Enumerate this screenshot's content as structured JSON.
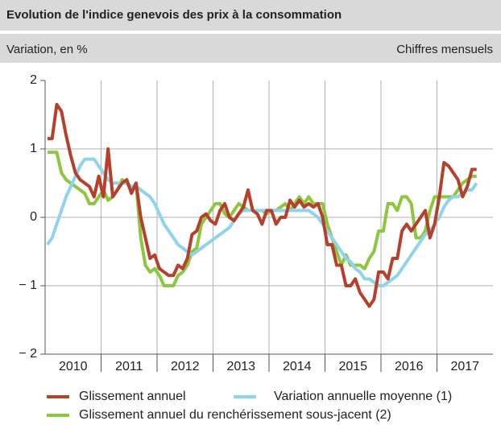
{
  "chart_data": {
    "type": "line",
    "title": "Evolution de l'indice genevois des prix à la consommation",
    "subtitle": "Variation, en %",
    "note": "Chiffres mensuels",
    "categories": [
      "2010",
      "2011",
      "2012",
      "2013",
      "2014",
      "2015",
      "2016",
      "2017"
    ],
    "ylim": [
      -2,
      2
    ],
    "yticks": [
      {
        "value": -2,
        "label": "− 2"
      },
      {
        "value": -1,
        "label": "− 1"
      },
      0,
      1,
      2
    ],
    "grid": true,
    "series": [
      {
        "name": "Glissement annuel",
        "color": "#b5412c",
        "values": [
          [
            1.15,
            1.15,
            1.65,
            1.55,
            1.2,
            0.9,
            0.65,
            0.55,
            0.5,
            0.45,
            0.3,
            0.6
          ],
          [
            0.3,
            1.0,
            0.3,
            0.4,
            0.5,
            0.55,
            0.35,
            0.5,
            0.0,
            -0.3,
            -0.6,
            -0.55
          ],
          [
            -0.75,
            -0.8,
            -0.85,
            -0.85,
            -0.7,
            -0.75,
            -0.6,
            -0.25,
            -0.2,
            0.0,
            0.05,
            -0.05
          ],
          [
            -0.1,
            0.1,
            0.2,
            0.0,
            -0.05,
            0.05,
            0.15,
            0.4,
            0.1,
            0.05,
            -0.1,
            0.1
          ],
          [
            0.1,
            -0.1,
            0.0,
            0.0,
            0.25,
            0.15,
            0.25,
            0.15,
            0.2,
            0.15,
            0.2,
            0.0
          ],
          [
            -0.4,
            -0.4,
            -0.7,
            -0.7,
            -1.0,
            -1.0,
            -0.9,
            -1.1,
            -1.2,
            -1.3,
            -1.2,
            -0.8
          ],
          [
            -0.8,
            -0.9,
            -0.6,
            -0.6,
            -0.2,
            -0.1,
            -0.2,
            -0.1,
            0.0,
            0.1,
            -0.3,
            -0.1
          ],
          [
            0.3,
            0.8,
            0.75,
            0.65,
            0.55,
            0.3,
            0.45,
            0.7,
            0.7
          ]
        ]
      },
      {
        "name": "Variation annuelle moyenne (1)",
        "color": "#8fd3ec",
        "values": [
          [
            -0.4,
            -0.3,
            -0.1,
            0.1,
            0.3,
            0.45,
            0.6,
            0.75,
            0.85,
            0.85,
            0.85,
            0.75
          ],
          [
            0.65,
            0.55,
            0.5,
            0.5,
            0.5,
            0.5,
            0.45,
            0.45,
            0.4,
            0.35,
            0.3,
            0.2
          ],
          [
            0.05,
            -0.1,
            -0.2,
            -0.3,
            -0.4,
            -0.45,
            -0.5,
            -0.55,
            -0.5,
            -0.45,
            -0.4,
            -0.35
          ],
          [
            -0.3,
            -0.25,
            -0.2,
            -0.15,
            -0.05,
            0.05,
            0.1,
            0.1,
            0.1,
            0.1,
            0.1,
            0.1
          ],
          [
            0.1,
            0.1,
            0.1,
            0.1,
            0.1,
            0.1,
            0.1,
            0.1,
            0.1,
            0.05,
            0.0,
            -0.1
          ],
          [
            -0.2,
            -0.3,
            -0.4,
            -0.5,
            -0.6,
            -0.65,
            -0.75,
            -0.8,
            -0.9,
            -0.9,
            -0.95,
            -1.0
          ],
          [
            -1.0,
            -0.95,
            -0.9,
            -0.85,
            -0.75,
            -0.65,
            -0.55,
            -0.45,
            -0.35,
            -0.25,
            -0.2,
            -0.1
          ],
          [
            0.0,
            0.15,
            0.25,
            0.3,
            0.3,
            0.35,
            0.4,
            0.4,
            0.5
          ]
        ]
      },
      {
        "name": "Glissement annuel du renchérissement sous-jacent (2)",
        "color": "#8dc63f",
        "values": [
          [
            0.95,
            0.95,
            0.95,
            0.65,
            0.55,
            0.5,
            0.45,
            0.4,
            0.35,
            0.2,
            0.2,
            0.3
          ],
          [
            0.4,
            0.25,
            0.3,
            0.4,
            0.55,
            0.5,
            0.4,
            0.5,
            -0.3,
            -0.7,
            -0.8,
            -0.75
          ],
          [
            -0.85,
            -1.0,
            -1.0,
            -1.0,
            -0.85,
            -0.8,
            -0.7,
            -0.5,
            -0.45,
            -0.1,
            0.0,
            0.1
          ],
          [
            0.2,
            0.2,
            0.05,
            0.0,
            0.1,
            0.2,
            0.15,
            0.1,
            0.1,
            0.1,
            0.1,
            0.05
          ],
          [
            0.1,
            0.1,
            0.15,
            0.2,
            0.1,
            0.2,
            0.3,
            0.2,
            0.3,
            0.2,
            0.2,
            0.2
          ],
          [
            -0.1,
            -0.3,
            -0.5,
            -0.7,
            -0.55,
            -0.7,
            -0.7,
            -0.7,
            -0.75,
            -0.6,
            -0.5,
            -0.2
          ],
          [
            -0.2,
            0.2,
            0.2,
            0.1,
            0.3,
            0.3,
            0.2,
            -0.3,
            -0.3,
            -0.2,
            0.1,
            0.3
          ],
          [
            0.3,
            0.3,
            0.3,
            0.3,
            0.4,
            0.5,
            0.55,
            0.6,
            0.6
          ]
        ]
      }
    ]
  }
}
